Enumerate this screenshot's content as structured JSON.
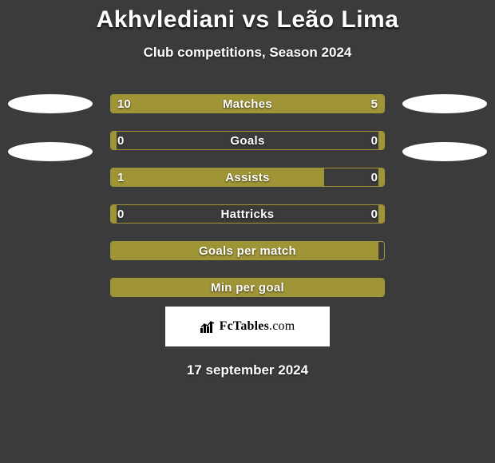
{
  "title": {
    "player1": "Akhvlediani",
    "vs": "vs",
    "player2": "Leão Lima"
  },
  "subtitle": "Club competitions, Season 2024",
  "chart": {
    "bar_color": "#a09536",
    "border_color": "#a09536",
    "background": "#3b3b3b",
    "oval_color": "#ffffff",
    "text_color": "#ffffff",
    "rows": [
      {
        "label": "Matches",
        "left_val": "10",
        "right_val": "5",
        "left_pct": 66.7,
        "right_pct": 33.3
      },
      {
        "label": "Goals",
        "left_val": "0",
        "right_val": "0",
        "left_pct": 2,
        "right_pct": 2
      },
      {
        "label": "Assists",
        "left_val": "1",
        "right_val": "0",
        "left_pct": 78,
        "right_pct": 2
      },
      {
        "label": "Hattricks",
        "left_val": "0",
        "right_val": "0",
        "left_pct": 2,
        "right_pct": 2
      },
      {
        "label": "Goals per match",
        "left_val": "",
        "right_val": "",
        "left_pct": 98,
        "right_pct": 0
      },
      {
        "label": "Min per goal",
        "left_val": "",
        "right_val": "",
        "left_pct": 100,
        "right_pct": 0
      }
    ],
    "left_ovals": 2,
    "right_ovals": 2
  },
  "logo": {
    "brand_bold": "FcTables",
    "brand_light": ".com"
  },
  "date": "17 september 2024"
}
